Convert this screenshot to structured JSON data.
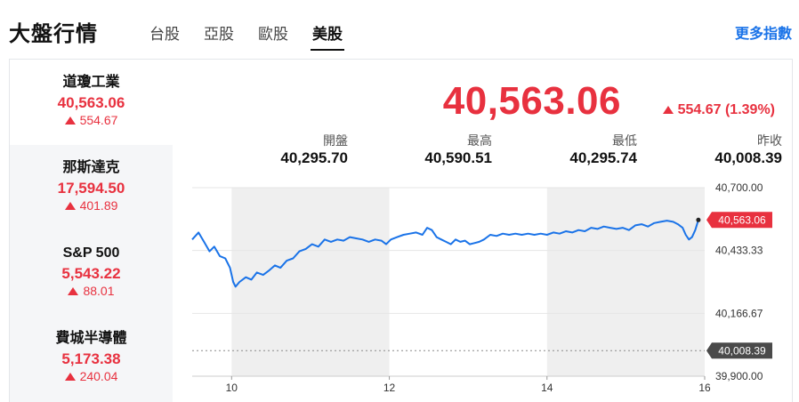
{
  "header": {
    "title": "大盤行情",
    "tabs": [
      {
        "label": "台股",
        "active": false
      },
      {
        "label": "亞股",
        "active": false
      },
      {
        "label": "歐股",
        "active": false
      },
      {
        "label": "美股",
        "active": true
      }
    ],
    "more_link": "更多指數"
  },
  "sidebar": {
    "items": [
      {
        "name": "道瓊工業",
        "value": "40,563.06",
        "change": "554.67",
        "active": true
      },
      {
        "name": "那斯達克",
        "value": "17,594.50",
        "change": "401.89",
        "active": false
      },
      {
        "name": "S&P 500",
        "value": "5,543.22",
        "change": "88.01",
        "active": false
      },
      {
        "name": "費城半導體",
        "value": "5,173.38",
        "change": "240.04",
        "active": false
      }
    ]
  },
  "quote": {
    "price": "40,563.06",
    "change": "554.67 (1.39%)",
    "stats": [
      {
        "label": "開盤",
        "value": "40,295.70"
      },
      {
        "label": "最高",
        "value": "40,590.51"
      },
      {
        "label": "最低",
        "value": "40,295.74"
      },
      {
        "label": "昨收",
        "value": "40,008.39"
      }
    ]
  },
  "colors": {
    "up": "#e8313f",
    "line": "#1a73e8",
    "accent": "#1a73e8",
    "shade": "#efefef"
  },
  "chart_data": {
    "type": "line",
    "title": "",
    "xlabel": "",
    "ylabel": "",
    "x_ticks": [
      "10",
      "12",
      "14",
      "16"
    ],
    "y_ticks": [
      "40,700.00",
      "40,433.33",
      "40,166.67",
      "39,900.00"
    ],
    "ylim": [
      39900,
      40700
    ],
    "xlim": [
      9.5,
      16.0
    ],
    "shaded_hours": [
      [
        10,
        12
      ],
      [
        14,
        16
      ]
    ],
    "last_label": "40,563.06",
    "prev_close_label": "40,008.39",
    "prev_close": 40008.39,
    "series": [
      {
        "values": [
          [
            9.5,
            40480
          ],
          [
            9.58,
            40510
          ],
          [
            9.65,
            40470
          ],
          [
            9.72,
            40430
          ],
          [
            9.78,
            40450
          ],
          [
            9.85,
            40410
          ],
          [
            9.92,
            40400
          ],
          [
            9.98,
            40360
          ],
          [
            10.02,
            40300
          ],
          [
            10.05,
            40280
          ],
          [
            10.1,
            40300
          ],
          [
            10.18,
            40320
          ],
          [
            10.25,
            40310
          ],
          [
            10.32,
            40340
          ],
          [
            10.4,
            40330
          ],
          [
            10.48,
            40350
          ],
          [
            10.55,
            40370
          ],
          [
            10.62,
            40360
          ],
          [
            10.7,
            40390
          ],
          [
            10.78,
            40400
          ],
          [
            10.86,
            40430
          ],
          [
            10.94,
            40440
          ],
          [
            11.02,
            40460
          ],
          [
            11.1,
            40450
          ],
          [
            11.18,
            40480
          ],
          [
            11.26,
            40470
          ],
          [
            11.34,
            40480
          ],
          [
            11.42,
            40475
          ],
          [
            11.5,
            40490
          ],
          [
            11.58,
            40485
          ],
          [
            11.66,
            40480
          ],
          [
            11.74,
            40470
          ],
          [
            11.82,
            40480
          ],
          [
            11.9,
            40475
          ],
          [
            11.96,
            40460
          ],
          [
            12.02,
            40480
          ],
          [
            12.1,
            40490
          ],
          [
            12.18,
            40500
          ],
          [
            12.26,
            40505
          ],
          [
            12.34,
            40510
          ],
          [
            12.42,
            40500
          ],
          [
            12.48,
            40530
          ],
          [
            12.54,
            40520
          ],
          [
            12.6,
            40490
          ],
          [
            12.66,
            40480
          ],
          [
            12.72,
            40470
          ],
          [
            12.78,
            40460
          ],
          [
            12.84,
            40480
          ],
          [
            12.9,
            40470
          ],
          [
            12.96,
            40475
          ],
          [
            13.02,
            40460
          ],
          [
            13.08,
            40465
          ],
          [
            13.14,
            40470
          ],
          [
            13.2,
            40480
          ],
          [
            13.28,
            40500
          ],
          [
            13.36,
            40495
          ],
          [
            13.44,
            40505
          ],
          [
            13.52,
            40500
          ],
          [
            13.6,
            40505
          ],
          [
            13.68,
            40500
          ],
          [
            13.76,
            40505
          ],
          [
            13.84,
            40500
          ],
          [
            13.92,
            40505
          ],
          [
            14.0,
            40500
          ],
          [
            14.08,
            40510
          ],
          [
            14.16,
            40505
          ],
          [
            14.24,
            40515
          ],
          [
            14.32,
            40510
          ],
          [
            14.4,
            40520
          ],
          [
            14.48,
            40515
          ],
          [
            14.56,
            40530
          ],
          [
            14.64,
            40525
          ],
          [
            14.72,
            40535
          ],
          [
            14.8,
            40530
          ],
          [
            14.88,
            40525
          ],
          [
            14.96,
            40530
          ],
          [
            15.04,
            40520
          ],
          [
            15.12,
            40540
          ],
          [
            15.2,
            40545
          ],
          [
            15.28,
            40535
          ],
          [
            15.36,
            40550
          ],
          [
            15.44,
            40555
          ],
          [
            15.52,
            40560
          ],
          [
            15.6,
            40555
          ],
          [
            15.66,
            40545
          ],
          [
            15.72,
            40530
          ],
          [
            15.76,
            40500
          ],
          [
            15.8,
            40480
          ],
          [
            15.84,
            40490
          ],
          [
            15.88,
            40520
          ],
          [
            15.92,
            40563
          ]
        ]
      }
    ]
  }
}
